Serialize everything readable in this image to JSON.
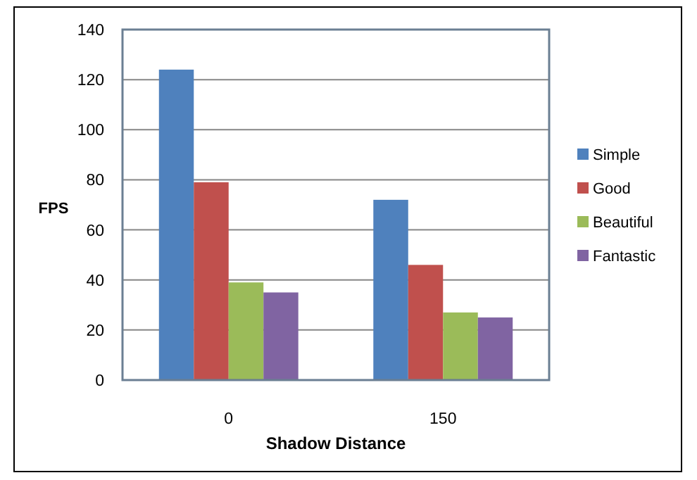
{
  "chart_data": {
    "type": "bar",
    "xlabel": "Shadow Distance",
    "ylabel": "FPS",
    "categories": [
      "0",
      "150"
    ],
    "series": [
      {
        "name": "Simple",
        "color": "#4f81bd",
        "values": [
          124,
          72
        ]
      },
      {
        "name": "Good",
        "color": "#c0504d",
        "values": [
          79,
          46
        ]
      },
      {
        "name": "Beautiful",
        "color": "#9bbb59",
        "values": [
          39,
          27
        ]
      },
      {
        "name": "Fantastic",
        "color": "#8064a2",
        "values": [
          35,
          25
        ]
      }
    ],
    "ylim": [
      0,
      140
    ],
    "yticks": [
      0,
      20,
      40,
      60,
      80,
      100,
      120,
      140
    ],
    "grid": "y",
    "legend": "right"
  }
}
